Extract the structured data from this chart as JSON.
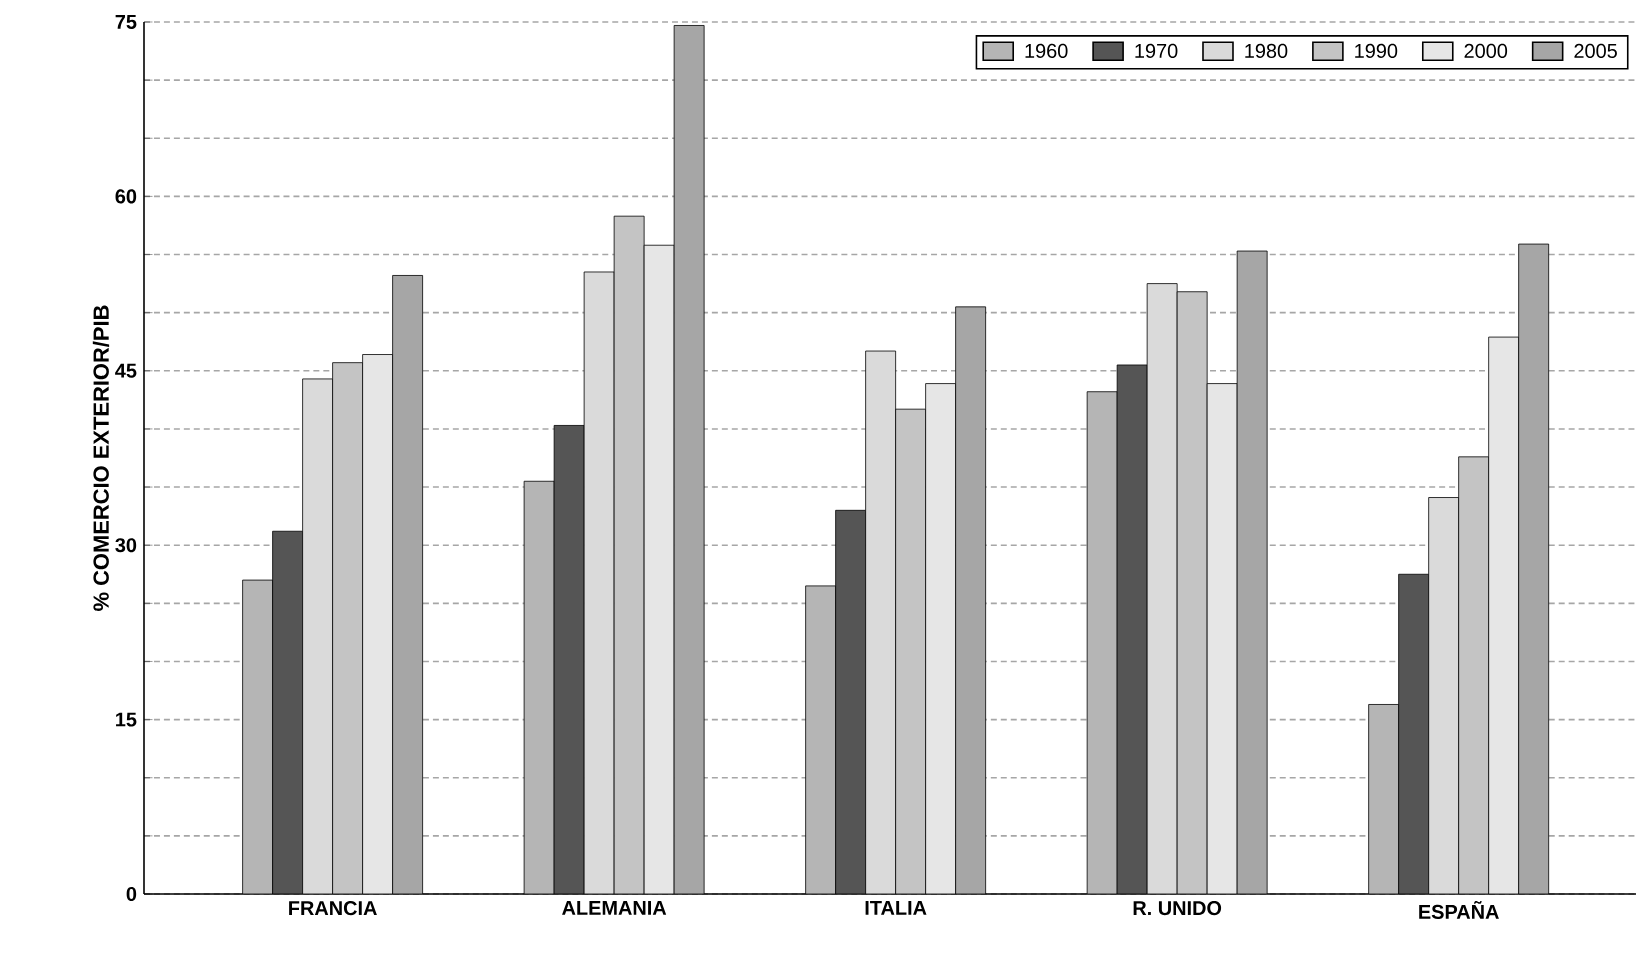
{
  "chart_data": {
    "type": "bar",
    "ylabel": "% COMERCIO EXTERIOR/PIB",
    "categories": [
      "FRANCIA",
      "ALEMANIA",
      "ITALIA",
      "R. UNIDO",
      "ESPAÑA"
    ],
    "series": [
      {
        "name": "1960",
        "color": "#b5b5b5",
        "values": [
          27.0,
          35.5,
          26.5,
          43.2,
          16.3
        ]
      },
      {
        "name": "1970",
        "color": "#555555",
        "values": [
          31.2,
          40.3,
          33.0,
          45.5,
          27.5
        ]
      },
      {
        "name": "1980",
        "color": "#dadada",
        "values": [
          44.3,
          53.5,
          46.7,
          52.5,
          34.1
        ]
      },
      {
        "name": "1990",
        "color": "#c4c4c4",
        "values": [
          45.7,
          58.3,
          41.7,
          51.8,
          37.6
        ]
      },
      {
        "name": "2000",
        "color": "#e6e6e6",
        "values": [
          46.4,
          55.8,
          43.9,
          43.9,
          47.9
        ]
      },
      {
        "name": "2005",
        "color": "#a6a6a6",
        "values": [
          53.2,
          74.7,
          50.5,
          55.3,
          55.9
        ]
      }
    ],
    "ylim": [
      0,
      75
    ],
    "yticks": [
      0,
      {
        "value": 5,
        "label": null
      },
      {
        "value": 10,
        "label": null
      },
      15,
      {
        "value": 20,
        "label": null
      },
      {
        "value": 25,
        "label": null
      },
      30,
      {
        "value": 35,
        "label": null
      },
      {
        "value": 40,
        "label": null
      },
      45,
      {
        "value": 50,
        "label": null
      },
      {
        "value": 55,
        "label": null
      },
      60,
      {
        "value": 65,
        "label": null
      },
      {
        "value": 70,
        "label": null
      },
      75
    ],
    "grid": "y",
    "legend": "top right"
  }
}
